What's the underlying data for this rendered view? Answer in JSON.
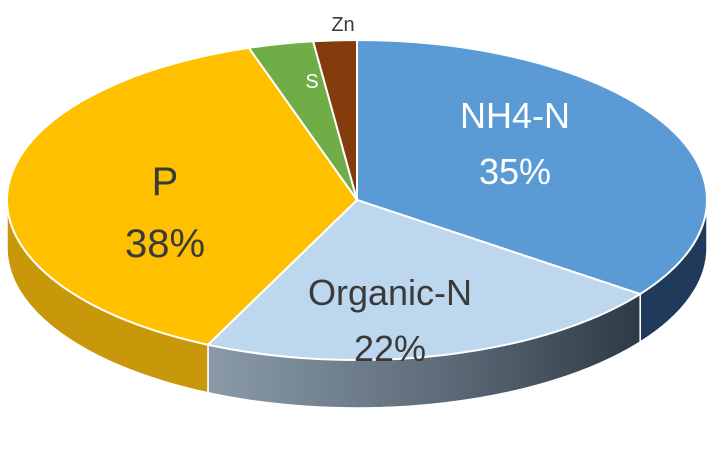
{
  "chart_data": {
    "type": "pie",
    "title": "",
    "slices": [
      {
        "label": "NH4-N",
        "value": 35,
        "pct_text": "35%",
        "color": "#5b9bd5",
        "side_color": "#1f3a5a",
        "text_color": "#ffffff"
      },
      {
        "label": "Organic-N",
        "value": 22,
        "pct_text": "22%",
        "color": "#bdd7ee",
        "side_color": "#4a5866",
        "text_color": "#3a3a3a"
      },
      {
        "label": "P",
        "value": 38,
        "pct_text": "38%",
        "color": "#ffc000",
        "side_color": "#c9980a",
        "text_color": "#3a3a3a"
      },
      {
        "label": "S",
        "value": 3,
        "pct_text": "",
        "color": "#70ad47",
        "side_color": "#4d7a30",
        "text_color": "#ffffff"
      },
      {
        "label": "Zn",
        "value": 2,
        "pct_text": "",
        "color": "#843c0c",
        "side_color": "#5a2808",
        "text_color": "#3a3a3a"
      }
    ]
  }
}
